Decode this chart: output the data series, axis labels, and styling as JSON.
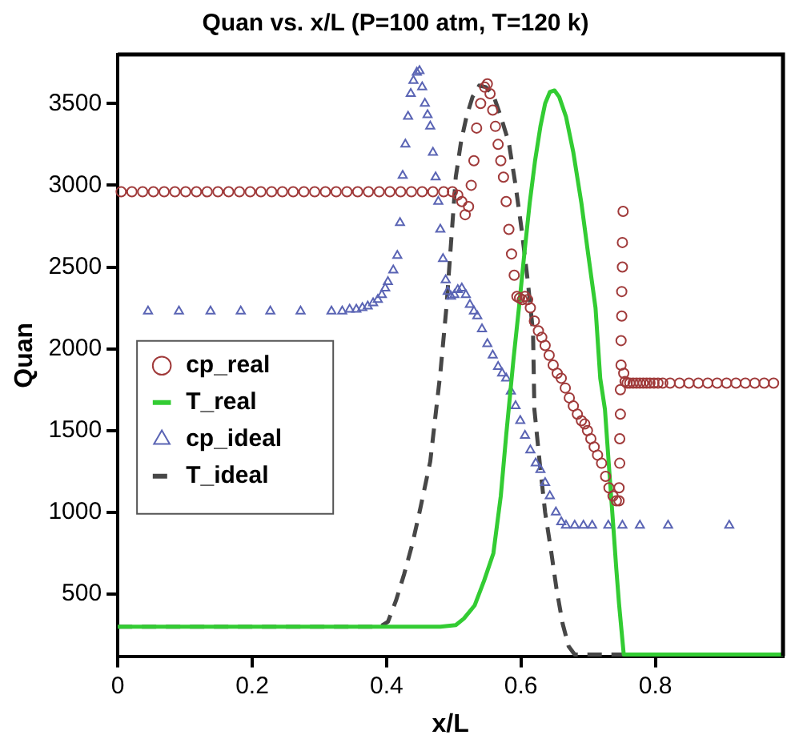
{
  "chart_data": {
    "type": "line",
    "title": "Quan vs. x/L (P=100 atm, T=120 k)",
    "xlabel": "x/L",
    "ylabel": "Quan",
    "xlim": [
      0,
      0.99
    ],
    "xticks": [
      0,
      0.2,
      0.4,
      0.6,
      0.8
    ],
    "ylim": [
      120,
      3800
    ],
    "yticks": [
      500,
      1000,
      1500,
      2000,
      2500,
      3000,
      3500
    ],
    "grid": false,
    "legend": "center left",
    "series": [
      {
        "name": "cp_real",
        "type": "scatter",
        "marker": "circle",
        "color": "#a03a3a",
        "x": [
          0.005,
          0.021,
          0.037,
          0.053,
          0.069,
          0.085,
          0.101,
          0.117,
          0.133,
          0.149,
          0.165,
          0.181,
          0.197,
          0.213,
          0.229,
          0.245,
          0.261,
          0.277,
          0.293,
          0.309,
          0.325,
          0.341,
          0.357,
          0.373,
          0.389,
          0.405,
          0.421,
          0.437,
          0.453,
          0.469,
          0.485,
          0.498,
          0.506,
          0.512,
          0.517,
          0.522,
          0.526,
          0.53,
          0.534,
          0.54,
          0.546,
          0.55,
          0.554,
          0.558,
          0.562,
          0.566,
          0.57,
          0.574,
          0.578,
          0.582,
          0.586,
          0.59,
          0.594,
          0.598,
          0.602,
          0.606,
          0.61,
          0.614,
          0.62,
          0.626,
          0.631,
          0.636,
          0.642,
          0.648,
          0.654,
          0.66,
          0.666,
          0.672,
          0.678,
          0.684,
          0.69,
          0.695,
          0.699,
          0.704,
          0.709,
          0.714,
          0.72,
          0.726,
          0.731,
          0.737,
          0.742,
          0.746,
          0.746,
          0.747,
          0.747,
          0.748,
          0.748,
          0.749,
          0.749,
          0.75,
          0.75,
          0.751,
          0.751,
          0.752,
          0.753,
          0.755,
          0.758,
          0.762,
          0.767,
          0.772,
          0.777,
          0.782,
          0.787,
          0.792,
          0.798,
          0.804,
          0.811,
          0.822,
          0.836,
          0.85,
          0.864,
          0.878,
          0.892,
          0.906,
          0.92,
          0.934,
          0.948,
          0.962,
          0.976
        ],
        "values": [
          2960,
          2960,
          2960,
          2960,
          2960,
          2960,
          2960,
          2960,
          2960,
          2960,
          2960,
          2960,
          2960,
          2960,
          2960,
          2960,
          2960,
          2960,
          2960,
          2960,
          2960,
          2960,
          2960,
          2960,
          2960,
          2960,
          2960,
          2960,
          2960,
          2960,
          2960,
          2960,
          2940,
          2900,
          2820,
          2870,
          3000,
          3150,
          3350,
          3500,
          3600,
          3620,
          3560,
          3460,
          3360,
          3250,
          3150,
          3050,
          2900,
          2730,
          2580,
          2450,
          2320,
          2310,
          2300,
          2320,
          2300,
          2250,
          2170,
          2110,
          2070,
          2020,
          1960,
          1900,
          1850,
          1820,
          1760,
          1700,
          1650,
          1600,
          1560,
          1540,
          1500,
          1450,
          1400,
          1350,
          1300,
          1220,
          1150,
          1100,
          1070,
          1070,
          1150,
          1300,
          1450,
          1600,
          1750,
          1900,
          2050,
          2200,
          2350,
          2500,
          2650,
          2840,
          1850,
          1800,
          1790,
          1790,
          1790,
          1790,
          1790,
          1790,
          1790,
          1790,
          1790,
          1790,
          1790,
          1790,
          1790,
          1790,
          1790,
          1790,
          1790,
          1790,
          1790,
          1790,
          1790,
          1790,
          1790
        ]
      },
      {
        "name": "T_real",
        "type": "line",
        "line_style": "solid",
        "color": "#33cc33",
        "x": [
          0,
          0.48,
          0.503,
          0.515,
          0.531,
          0.545,
          0.559,
          0.57,
          0.578,
          0.589,
          0.597,
          0.605,
          0.613,
          0.621,
          0.629,
          0.636,
          0.643,
          0.65,
          0.657,
          0.667,
          0.678,
          0.69,
          0.7,
          0.711,
          0.718,
          0.725,
          0.731,
          0.737,
          0.742,
          0.746,
          0.753,
          0.99
        ],
        "values": [
          300,
          300,
          310,
          350,
          430,
          580,
          750,
          1100,
          1470,
          1940,
          2250,
          2580,
          2890,
          3150,
          3360,
          3500,
          3570,
          3580,
          3540,
          3420,
          3200,
          2890,
          2580,
          2250,
          1820,
          1630,
          1280,
          940,
          650,
          440,
          130,
          130
        ]
      },
      {
        "name": "cp_ideal",
        "type": "scatter",
        "marker": "triangle",
        "color": "#5a64b4",
        "x": [
          0.045,
          0.091,
          0.138,
          0.183,
          0.227,
          0.272,
          0.318,
          0.334,
          0.345,
          0.355,
          0.364,
          0.372,
          0.38,
          0.387,
          0.393,
          0.398,
          0.402,
          0.41,
          0.416,
          0.42,
          0.424,
          0.428,
          0.432,
          0.436,
          0.44,
          0.445,
          0.449,
          0.453,
          0.457,
          0.461,
          0.465,
          0.469,
          0.473,
          0.477,
          0.48,
          0.484,
          0.488,
          0.491,
          0.496,
          0.501,
          0.506,
          0.512,
          0.518,
          0.524,
          0.53,
          0.535,
          0.542,
          0.55,
          0.558,
          0.566,
          0.572,
          0.578,
          0.585,
          0.592,
          0.599,
          0.606,
          0.614,
          0.622,
          0.629,
          0.636,
          0.643,
          0.652,
          0.66,
          0.667,
          0.68,
          0.693,
          0.706,
          0.73,
          0.751,
          0.777,
          0.819,
          0.91
        ],
        "values": [
          2230,
          2230,
          2230,
          2230,
          2230,
          2230,
          2230,
          2230,
          2240,
          2240,
          2250,
          2260,
          2280,
          2300,
          2330,
          2370,
          2410,
          2480,
          2570,
          2770,
          3060,
          3250,
          3420,
          3560,
          3640,
          3690,
          3700,
          3600,
          3500,
          3430,
          3360,
          3200,
          3050,
          2900,
          2730,
          2550,
          2420,
          2350,
          2320,
          2330,
          2360,
          2370,
          2330,
          2270,
          2230,
          2200,
          2120,
          2030,
          1960,
          1890,
          1850,
          1820,
          1740,
          1650,
          1560,
          1470,
          1380,
          1300,
          1260,
          1180,
          1100,
          1000,
          940,
          920,
          920,
          920,
          920,
          920,
          920,
          920,
          920,
          920
        ]
      },
      {
        "name": "T_ideal",
        "type": "line",
        "line_style": "dashed",
        "color": "#474747",
        "x": [
          0,
          0.39,
          0.402,
          0.414,
          0.426,
          0.438,
          0.449,
          0.465,
          0.48,
          0.489,
          0.496,
          0.503,
          0.511,
          0.519,
          0.528,
          0.538,
          0.548,
          0.559,
          0.57,
          0.582,
          0.592,
          0.601,
          0.61,
          0.618,
          0.62,
          0.628,
          0.636,
          0.645,
          0.653,
          0.662,
          0.671,
          0.68,
          0.99
        ],
        "values": [
          300,
          300,
          330,
          460,
          620,
          800,
          1000,
          1310,
          1850,
          2250,
          2650,
          3050,
          3270,
          3420,
          3540,
          3610,
          3600,
          3550,
          3420,
          3260,
          3000,
          2730,
          2420,
          2100,
          1630,
          1300,
          1000,
          760,
          530,
          320,
          180,
          130,
          130
        ]
      }
    ]
  }
}
